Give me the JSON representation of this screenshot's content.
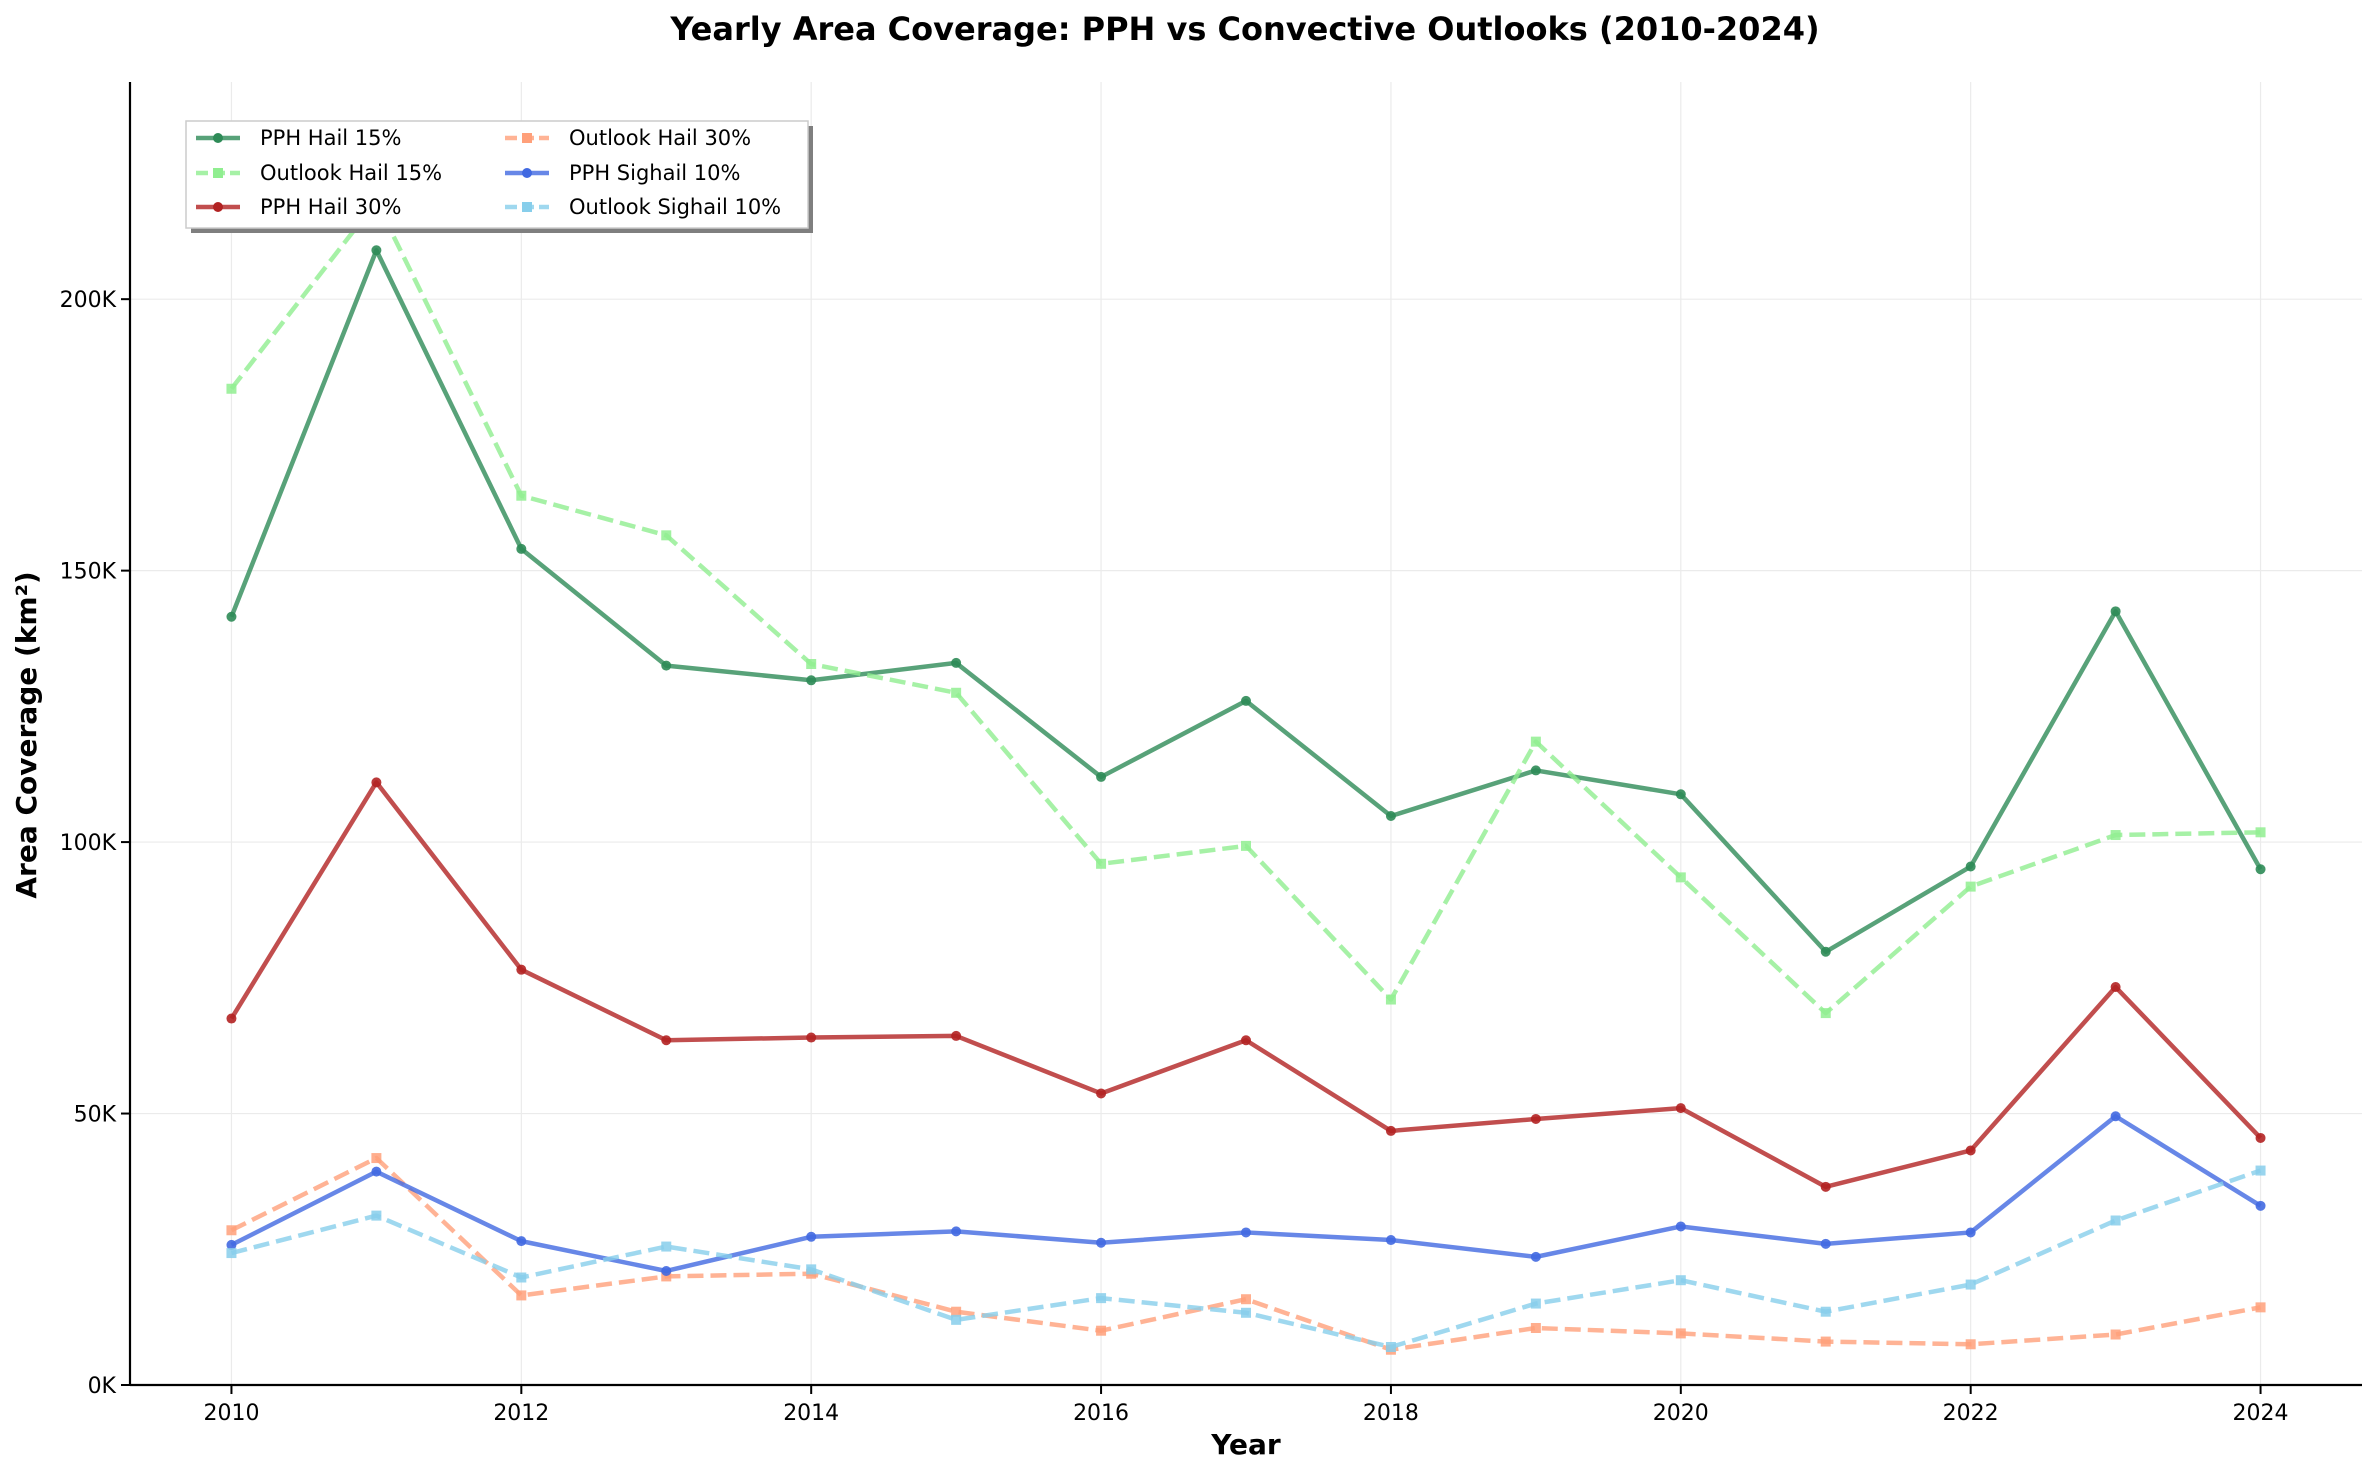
{
  "chart_data": {
    "type": "line",
    "title": "Yearly Area Coverage: PPH vs Convective Outlooks (2010-2024)",
    "xlabel": "Year",
    "ylabel": "Area Coverage (km²)",
    "x": [
      2010,
      2011,
      2012,
      2013,
      2014,
      2015,
      2016,
      2017,
      2018,
      2019,
      2020,
      2021,
      2022,
      2023,
      2024
    ],
    "xlim": [
      2009.3,
      2024.7
    ],
    "ylim": [
      0,
      240000
    ],
    "xticks": [
      2010,
      2012,
      2014,
      2016,
      2018,
      2020,
      2022,
      2024
    ],
    "xtick_labels": [
      "2010",
      "2012",
      "2014",
      "2016",
      "2018",
      "2020",
      "2022",
      "2024"
    ],
    "yticks": [
      0,
      50000,
      100000,
      150000,
      200000
    ],
    "ytick_labels": [
      "0K",
      "50K",
      "100K",
      "150K",
      "200K"
    ],
    "grid": true,
    "legend_position": "top-left",
    "series": [
      {
        "name": "PPH Hail 15%",
        "color": "#2e8b57",
        "style": "solid",
        "marker": "circle",
        "values": [
          141500,
          209000,
          154000,
          132500,
          129800,
          133000,
          112000,
          126000,
          104800,
          113200,
          108800,
          79800,
          95500,
          142500,
          95000
        ]
      },
      {
        "name": "Outlook Hail 15%",
        "color": "#90ee90",
        "style": "dashed",
        "marker": "square",
        "values": [
          183500,
          218000,
          163800,
          156500,
          132800,
          127500,
          96000,
          99300,
          71000,
          118500,
          93500,
          68500,
          91800,
          101300,
          101800
        ]
      },
      {
        "name": "PPH Hail 30%",
        "color": "#b22222",
        "style": "solid",
        "marker": "circle",
        "values": [
          67500,
          111000,
          76500,
          63500,
          64000,
          64300,
          53700,
          63500,
          46800,
          49000,
          51000,
          36500,
          43200,
          73300,
          45500
        ]
      },
      {
        "name": "Outlook Hail 30%",
        "color": "#ffa07a",
        "style": "dashed",
        "marker": "square",
        "values": [
          28500,
          41800,
          16500,
          20000,
          20500,
          13500,
          10000,
          15800,
          6500,
          10500,
          9500,
          8000,
          7500,
          9300,
          14300
        ]
      },
      {
        "name": "PPH Sighail 10%",
        "color": "#4169e1",
        "style": "solid",
        "marker": "circle",
        "values": [
          25800,
          39300,
          26500,
          21000,
          27300,
          28300,
          26200,
          28100,
          26700,
          23600,
          29200,
          26000,
          28100,
          49500,
          33000
        ]
      },
      {
        "name": "Outlook Sighail 10%",
        "color": "#87ceeb",
        "style": "dashed",
        "marker": "square",
        "values": [
          24300,
          31200,
          19800,
          25500,
          21300,
          12000,
          16000,
          13300,
          7000,
          15000,
          19300,
          13500,
          18500,
          30300,
          39500
        ]
      }
    ]
  }
}
